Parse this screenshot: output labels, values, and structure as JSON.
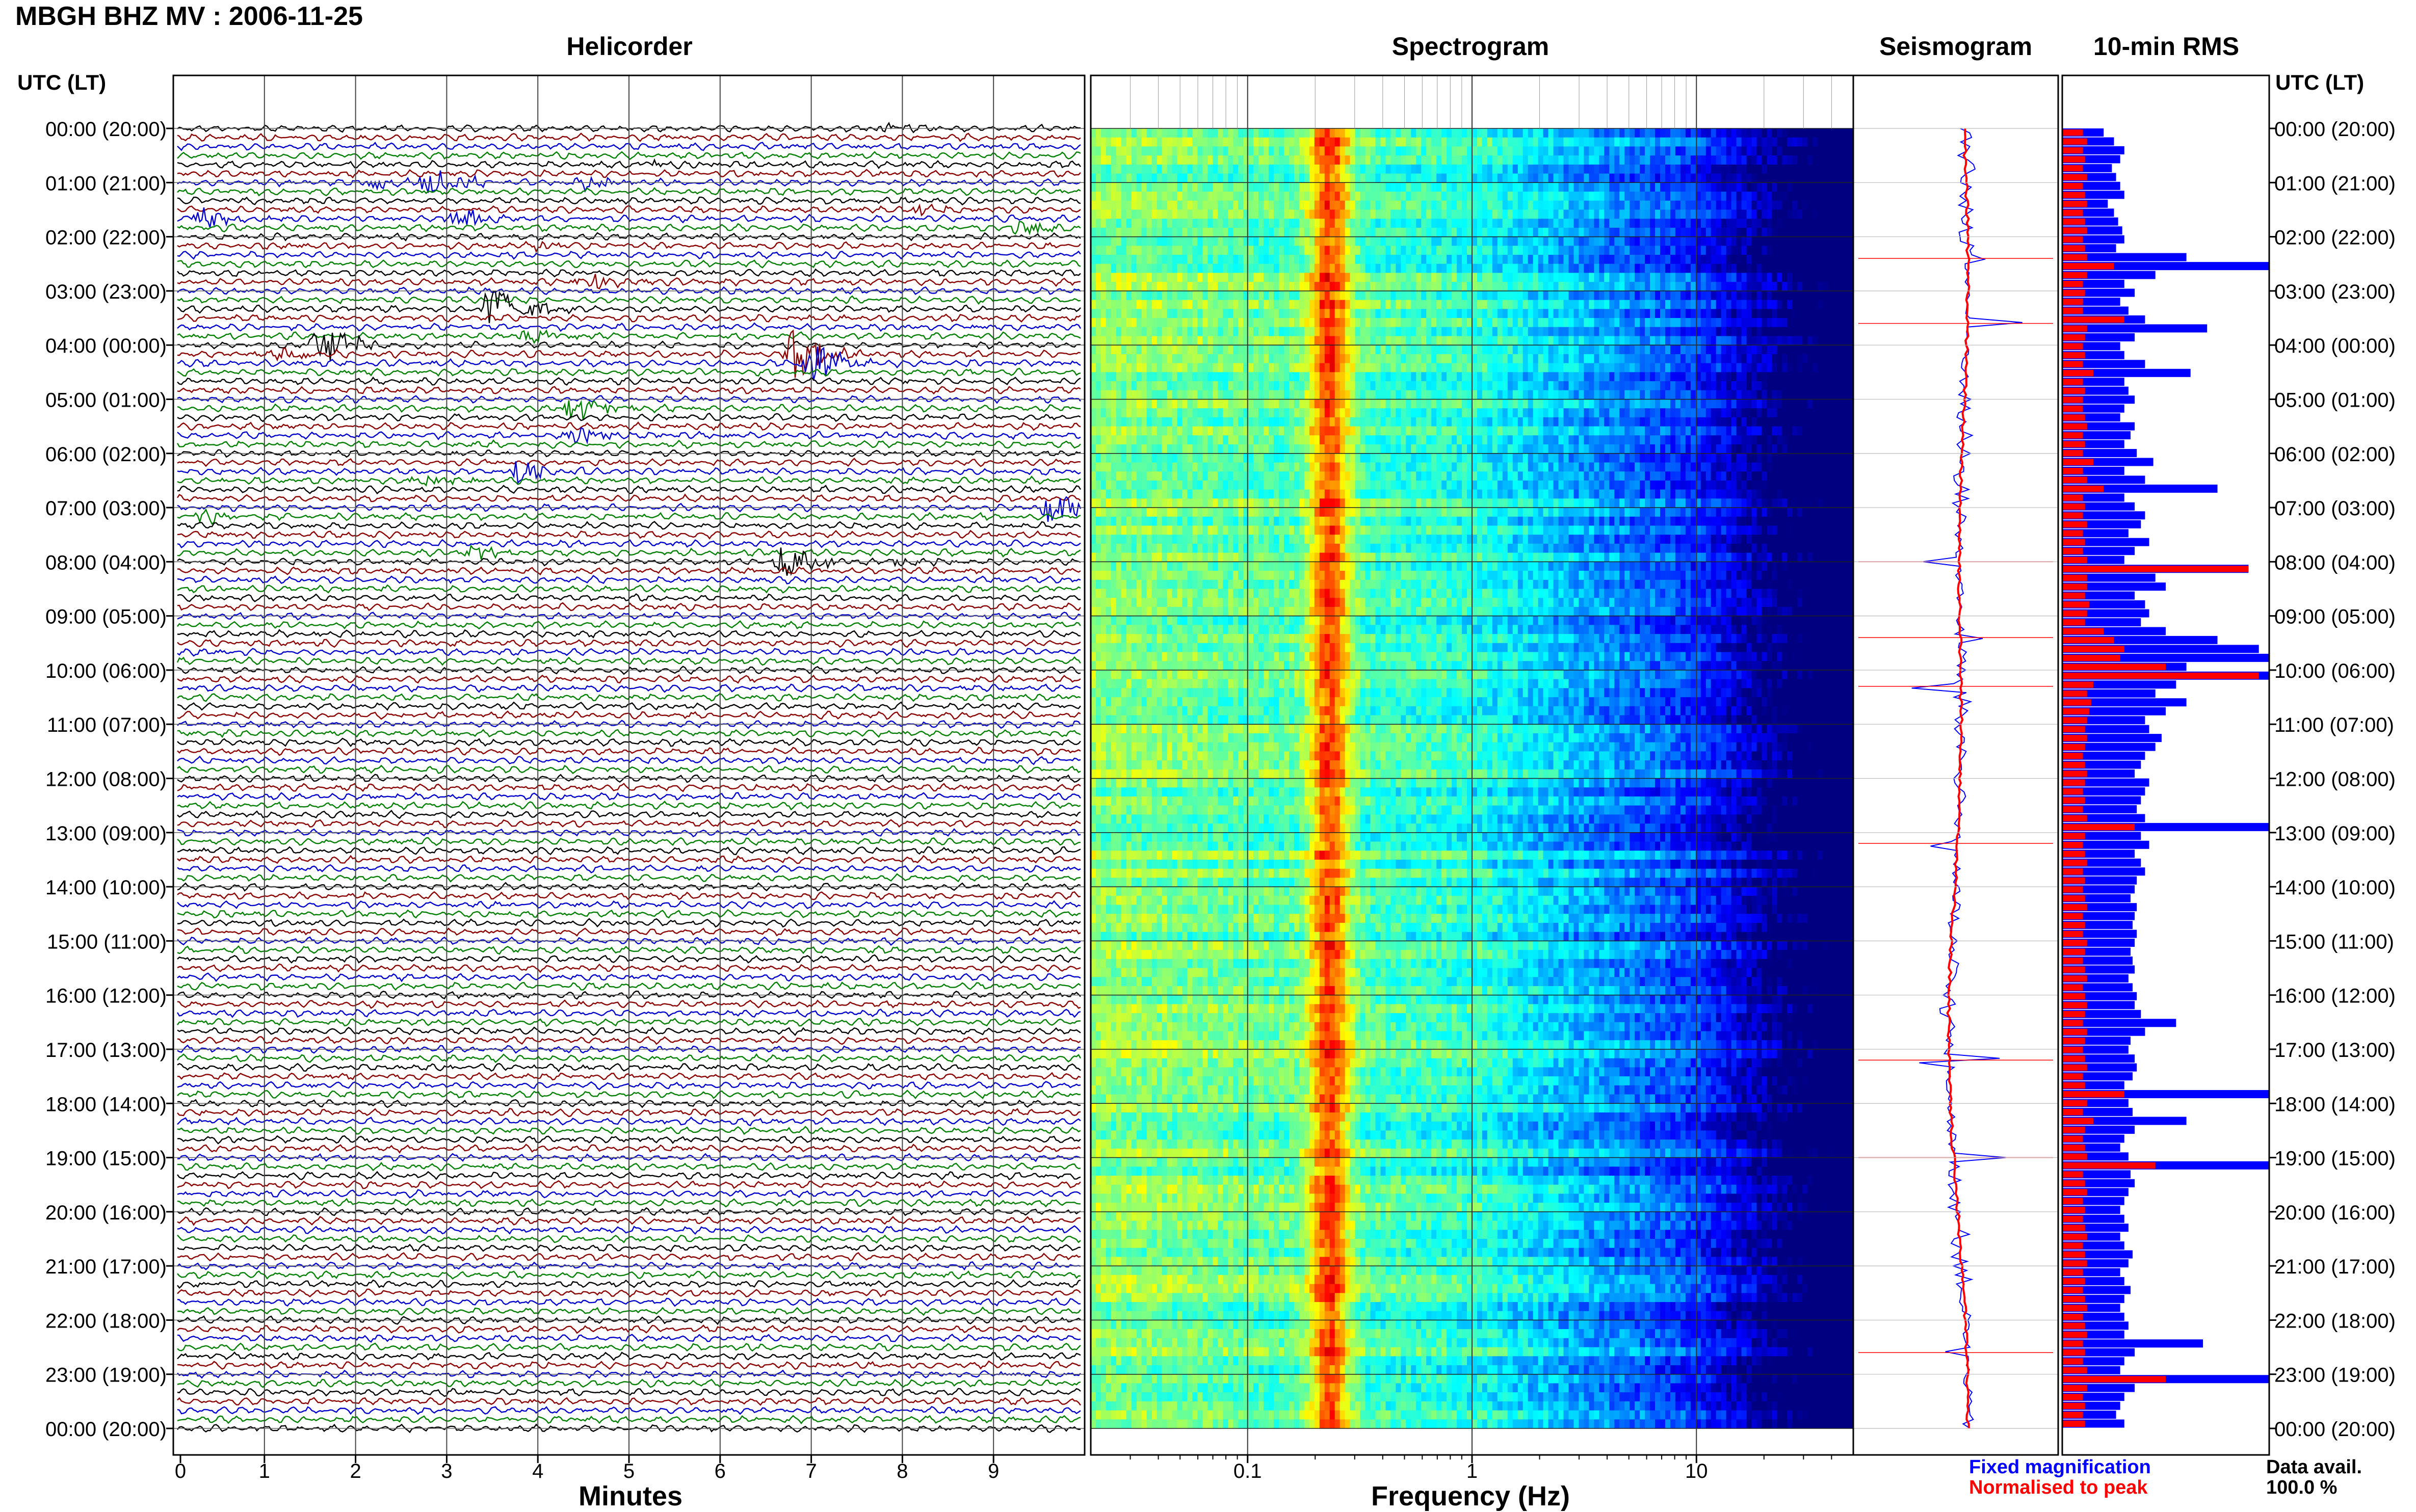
{
  "title": "MBGH BHZ MV : 2006-11-25",
  "panel_titles": {
    "helicorder": "Helicorder",
    "spectrogram": "Spectrogram",
    "seismogram": "Seismogram",
    "rms": "10-min RMS"
  },
  "utc_label": "UTC (LT)",
  "x_axis_labels": {
    "helicorder": "Minutes",
    "spectrogram": "Frequency (Hz)"
  },
  "legend": {
    "fixed": "Fixed magnification",
    "normalised": "Normalised to peak"
  },
  "data_avail": {
    "label": "Data avail.",
    "value": "100.0 %"
  },
  "colors": {
    "trace_cycle": [
      "#000000",
      "#8b0000",
      "#0000cd",
      "#008000"
    ],
    "fixed": "#0000ff",
    "normalised": "#ff0000"
  },
  "chart_data": [
    {
      "type": "line",
      "panel": "helicorder",
      "xlabel": "Minutes",
      "xlim": [
        0,
        10
      ],
      "x_ticks": [
        "0",
        "1",
        "2",
        "3",
        "4",
        "5",
        "6",
        "7",
        "8",
        "9"
      ],
      "hour_labels": [
        "00:00 (20:00)",
        "01:00 (21:00)",
        "02:00 (22:00)",
        "03:00 (23:00)",
        "04:00 (00:00)",
        "05:00 (01:00)",
        "06:00 (02:00)",
        "07:00 (03:00)",
        "08:00 (04:00)",
        "09:00 (05:00)",
        "10:00 (06:00)",
        "11:00 (07:00)",
        "12:00 (08:00)",
        "13:00 (09:00)",
        "14:00 (10:00)",
        "15:00 (11:00)",
        "16:00 (12:00)",
        "17:00 (13:00)",
        "18:00 (14:00)",
        "19:00 (15:00)",
        "20:00 (16:00)",
        "21:00 (17:00)",
        "22:00 (18:00)",
        "23:00 (19:00)",
        "00:00 (20:00)"
      ],
      "events": [
        {
          "line": 0,
          "minute": 7.8,
          "amplitude": 0.6
        },
        {
          "line": 4,
          "minute": 5.2,
          "amplitude": 0.5
        },
        {
          "line": 6,
          "minute": 2.8,
          "amplitude": 2.2
        },
        {
          "line": 6,
          "minute": 2.2,
          "amplitude": 0.8
        },
        {
          "line": 6,
          "minute": 4.5,
          "amplitude": 0.9
        },
        {
          "line": 9,
          "minute": 8.2,
          "amplitude": 0.6
        },
        {
          "line": 10,
          "minute": 3.1,
          "amplitude": 1.6
        },
        {
          "line": 10,
          "minute": 0.3,
          "amplitude": 1.4
        },
        {
          "line": 11,
          "minute": 9.3,
          "amplitude": 1.1
        },
        {
          "line": 13,
          "minute": 4.0,
          "amplitude": 0.6
        },
        {
          "line": 17,
          "minute": 4.5,
          "amplitude": 1.2
        },
        {
          "line": 20,
          "minute": 3.5,
          "amplitude": 3.8
        },
        {
          "line": 23,
          "minute": 3.9,
          "amplitude": 1.4
        },
        {
          "line": 24,
          "minute": 1.6,
          "amplitude": 3.2
        },
        {
          "line": 25,
          "minute": 1.2,
          "amplitude": 1.0
        },
        {
          "line": 25,
          "minute": 6.8,
          "amplitude": 3.5
        },
        {
          "line": 26,
          "minute": 7.0,
          "amplitude": 2.8
        },
        {
          "line": 31,
          "minute": 4.4,
          "amplitude": 2.0
        },
        {
          "line": 34,
          "minute": 4.4,
          "amplitude": 1.1
        },
        {
          "line": 38,
          "minute": 3.8,
          "amplitude": 1.5
        },
        {
          "line": 39,
          "minute": 2.7,
          "amplitude": 0.8
        },
        {
          "line": 42,
          "minute": 9.6,
          "amplitude": 2.5
        },
        {
          "line": 43,
          "minute": 0.3,
          "amplitude": 1.0
        },
        {
          "line": 47,
          "minute": 3.3,
          "amplitude": 0.9
        },
        {
          "line": 48,
          "minute": 6.7,
          "amplitude": 2.4
        },
        {
          "line": 48,
          "minute": 8.0,
          "amplitude": 0.7
        }
      ]
    },
    {
      "type": "heatmap",
      "panel": "spectrogram",
      "xlabel": "Frequency (Hz)",
      "x_scale": "log",
      "xlim": [
        0.02,
        50
      ],
      "x_ticks": [
        "0.1",
        "1",
        "10"
      ],
      "dominant_band_hz": [
        0.18,
        0.3
      ],
      "colormap": "jet"
    },
    {
      "type": "line",
      "panel": "seismogram",
      "series": [
        {
          "name": "Fixed magnification",
          "color": "#0000ff"
        },
        {
          "name": "Normalised to peak",
          "color": "#ff0000"
        }
      ],
      "spikes_at_hours": [
        2.4,
        3.6,
        8.0,
        9.4,
        10.3,
        13.2,
        17.2,
        19.0,
        22.6
      ]
    },
    {
      "type": "bar",
      "panel": "rms",
      "orientation": "horizontal",
      "bins_per_hour": 6,
      "fixed_rms": [
        0.2,
        0.25,
        0.3,
        0.28,
        0.24,
        0.26,
        0.28,
        0.3,
        0.22,
        0.25,
        0.27,
        0.29,
        0.3,
        0.26,
        0.6,
        1.0,
        0.45,
        0.3,
        0.35,
        0.28,
        0.32,
        0.4,
        0.7,
        0.35,
        0.28,
        0.3,
        0.4,
        0.62,
        0.3,
        0.32,
        0.35,
        0.3,
        0.28,
        0.35,
        0.33,
        0.3,
        0.36,
        0.44,
        0.3,
        0.4,
        0.75,
        0.3,
        0.35,
        0.4,
        0.38,
        0.32,
        0.42,
        0.35,
        0.3,
        0.9,
        0.45,
        0.5,
        0.35,
        0.4,
        0.42,
        0.38,
        0.5,
        0.75,
        0.95,
        1.0,
        0.6,
        1.0,
        0.55,
        0.45,
        0.6,
        0.5,
        0.4,
        0.42,
        0.48,
        0.45,
        0.4,
        0.38,
        0.35,
        0.42,
        0.4,
        0.38,
        0.36,
        0.4,
        1.0,
        0.38,
        0.42,
        0.35,
        0.38,
        0.4,
        0.36,
        0.35,
        0.33,
        0.36,
        0.35,
        0.34,
        0.36,
        0.35,
        0.33,
        0.34,
        0.35,
        0.32,
        0.34,
        0.36,
        0.35,
        0.38,
        0.55,
        0.4,
        0.33,
        0.32,
        0.35,
        0.36,
        0.34,
        0.3,
        1.0,
        0.32,
        0.34,
        0.6,
        0.35,
        0.3,
        0.28,
        0.32,
        1.0,
        0.33,
        0.35,
        0.32,
        0.3,
        0.28,
        0.3,
        0.32,
        0.28,
        0.3,
        0.34,
        0.32,
        0.28,
        0.3,
        0.33,
        0.3,
        0.28,
        0.3,
        0.32,
        0.3,
        0.68,
        0.35,
        0.3,
        0.28,
        1.0,
        0.35,
        0.3,
        0.28,
        0.26,
        0.3
      ],
      "normalised_peak": [
        0.1,
        0.12,
        0.1,
        0.11,
        0.1,
        0.12,
        0.1,
        0.11,
        0.12,
        0.1,
        0.11,
        0.12,
        0.1,
        0.11,
        0.12,
        0.25,
        0.12,
        0.1,
        0.11,
        0.1,
        0.1,
        0.3,
        0.12,
        0.11,
        0.1,
        0.11,
        0.1,
        0.15,
        0.1,
        0.11,
        0.1,
        0.1,
        0.11,
        0.12,
        0.1,
        0.11,
        0.1,
        0.15,
        0.1,
        0.12,
        0.2,
        0.1,
        0.11,
        0.1,
        0.12,
        0.1,
        0.11,
        0.1,
        0.12,
        0.9,
        0.12,
        0.12,
        0.11,
        0.13,
        0.12,
        0.11,
        0.2,
        0.25,
        0.3,
        0.28,
        0.5,
        0.95,
        0.15,
        0.12,
        0.14,
        0.13,
        0.12,
        0.11,
        0.12,
        0.11,
        0.1,
        0.11,
        0.12,
        0.11,
        0.1,
        0.11,
        0.1,
        0.12,
        0.35,
        0.11,
        0.1,
        0.11,
        0.12,
        0.1,
        0.11,
        0.1,
        0.11,
        0.12,
        0.1,
        0.11,
        0.1,
        0.12,
        0.11,
        0.1,
        0.11,
        0.12,
        0.1,
        0.11,
        0.12,
        0.11,
        0.1,
        0.12,
        0.11,
        0.1,
        0.11,
        0.12,
        0.1,
        0.11,
        0.3,
        0.12,
        0.1,
        0.15,
        0.11,
        0.1,
        0.11,
        0.12,
        0.45,
        0.1,
        0.11,
        0.12,
        0.1,
        0.11,
        0.1,
        0.11,
        0.12,
        0.1,
        0.11,
        0.12,
        0.1,
        0.11,
        0.1,
        0.11,
        0.12,
        0.1,
        0.11,
        0.12,
        0.1,
        0.11,
        0.1,
        0.12,
        0.5,
        0.12,
        0.1,
        0.11,
        0.1,
        0.11
      ]
    }
  ]
}
